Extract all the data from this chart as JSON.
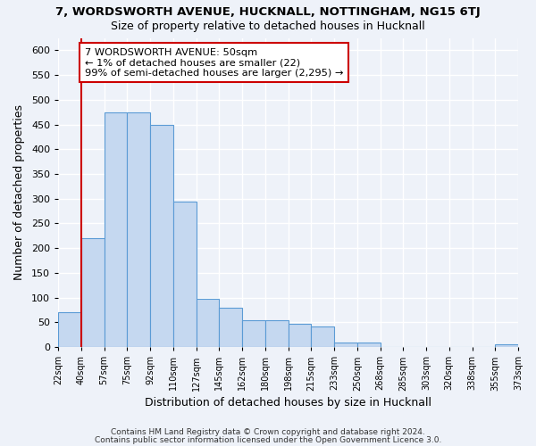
{
  "title_main": "7, WORDSWORTH AVENUE, HUCKNALL, NOTTINGHAM, NG15 6TJ",
  "title_sub": "Size of property relative to detached houses in Hucknall",
  "xlabel": "Distribution of detached houses by size in Hucknall",
  "ylabel": "Number of detached properties",
  "bin_labels": [
    "22sqm",
    "40sqm",
    "57sqm",
    "75sqm",
    "92sqm",
    "110sqm",
    "127sqm",
    "145sqm",
    "162sqm",
    "180sqm",
    "198sqm",
    "215sqm",
    "233sqm",
    "250sqm",
    "268sqm",
    "285sqm",
    "303sqm",
    "320sqm",
    "338sqm",
    "355sqm",
    "373sqm"
  ],
  "bar_values": [
    70,
    220,
    475,
    475,
    450,
    295,
    97,
    80,
    55,
    55,
    48,
    42,
    10,
    10,
    0,
    0,
    0,
    0,
    0,
    5
  ],
  "bar_color": "#c5d8f0",
  "bar_edge_color": "#5b9bd5",
  "ylim": [
    0,
    625
  ],
  "yticks": [
    0,
    50,
    100,
    150,
    200,
    250,
    300,
    350,
    400,
    450,
    500,
    550,
    600
  ],
  "red_line_x": 1,
  "annotation_title": "7 WORDSWORTH AVENUE: 50sqm",
  "annotation_line1": "← 1% of detached houses are smaller (22)",
  "annotation_line2": "99% of semi-detached houses are larger (2,295) →",
  "annotation_box_color": "#ffffff",
  "annotation_box_edge": "#cc0000",
  "footer1": "Contains HM Land Registry data © Crown copyright and database right 2024.",
  "footer2": "Contains public sector information licensed under the Open Government Licence 3.0.",
  "background_color": "#eef2f9",
  "grid_color": "#ffffff",
  "figwidth": 6.0,
  "figheight": 5.0,
  "dpi": 100
}
